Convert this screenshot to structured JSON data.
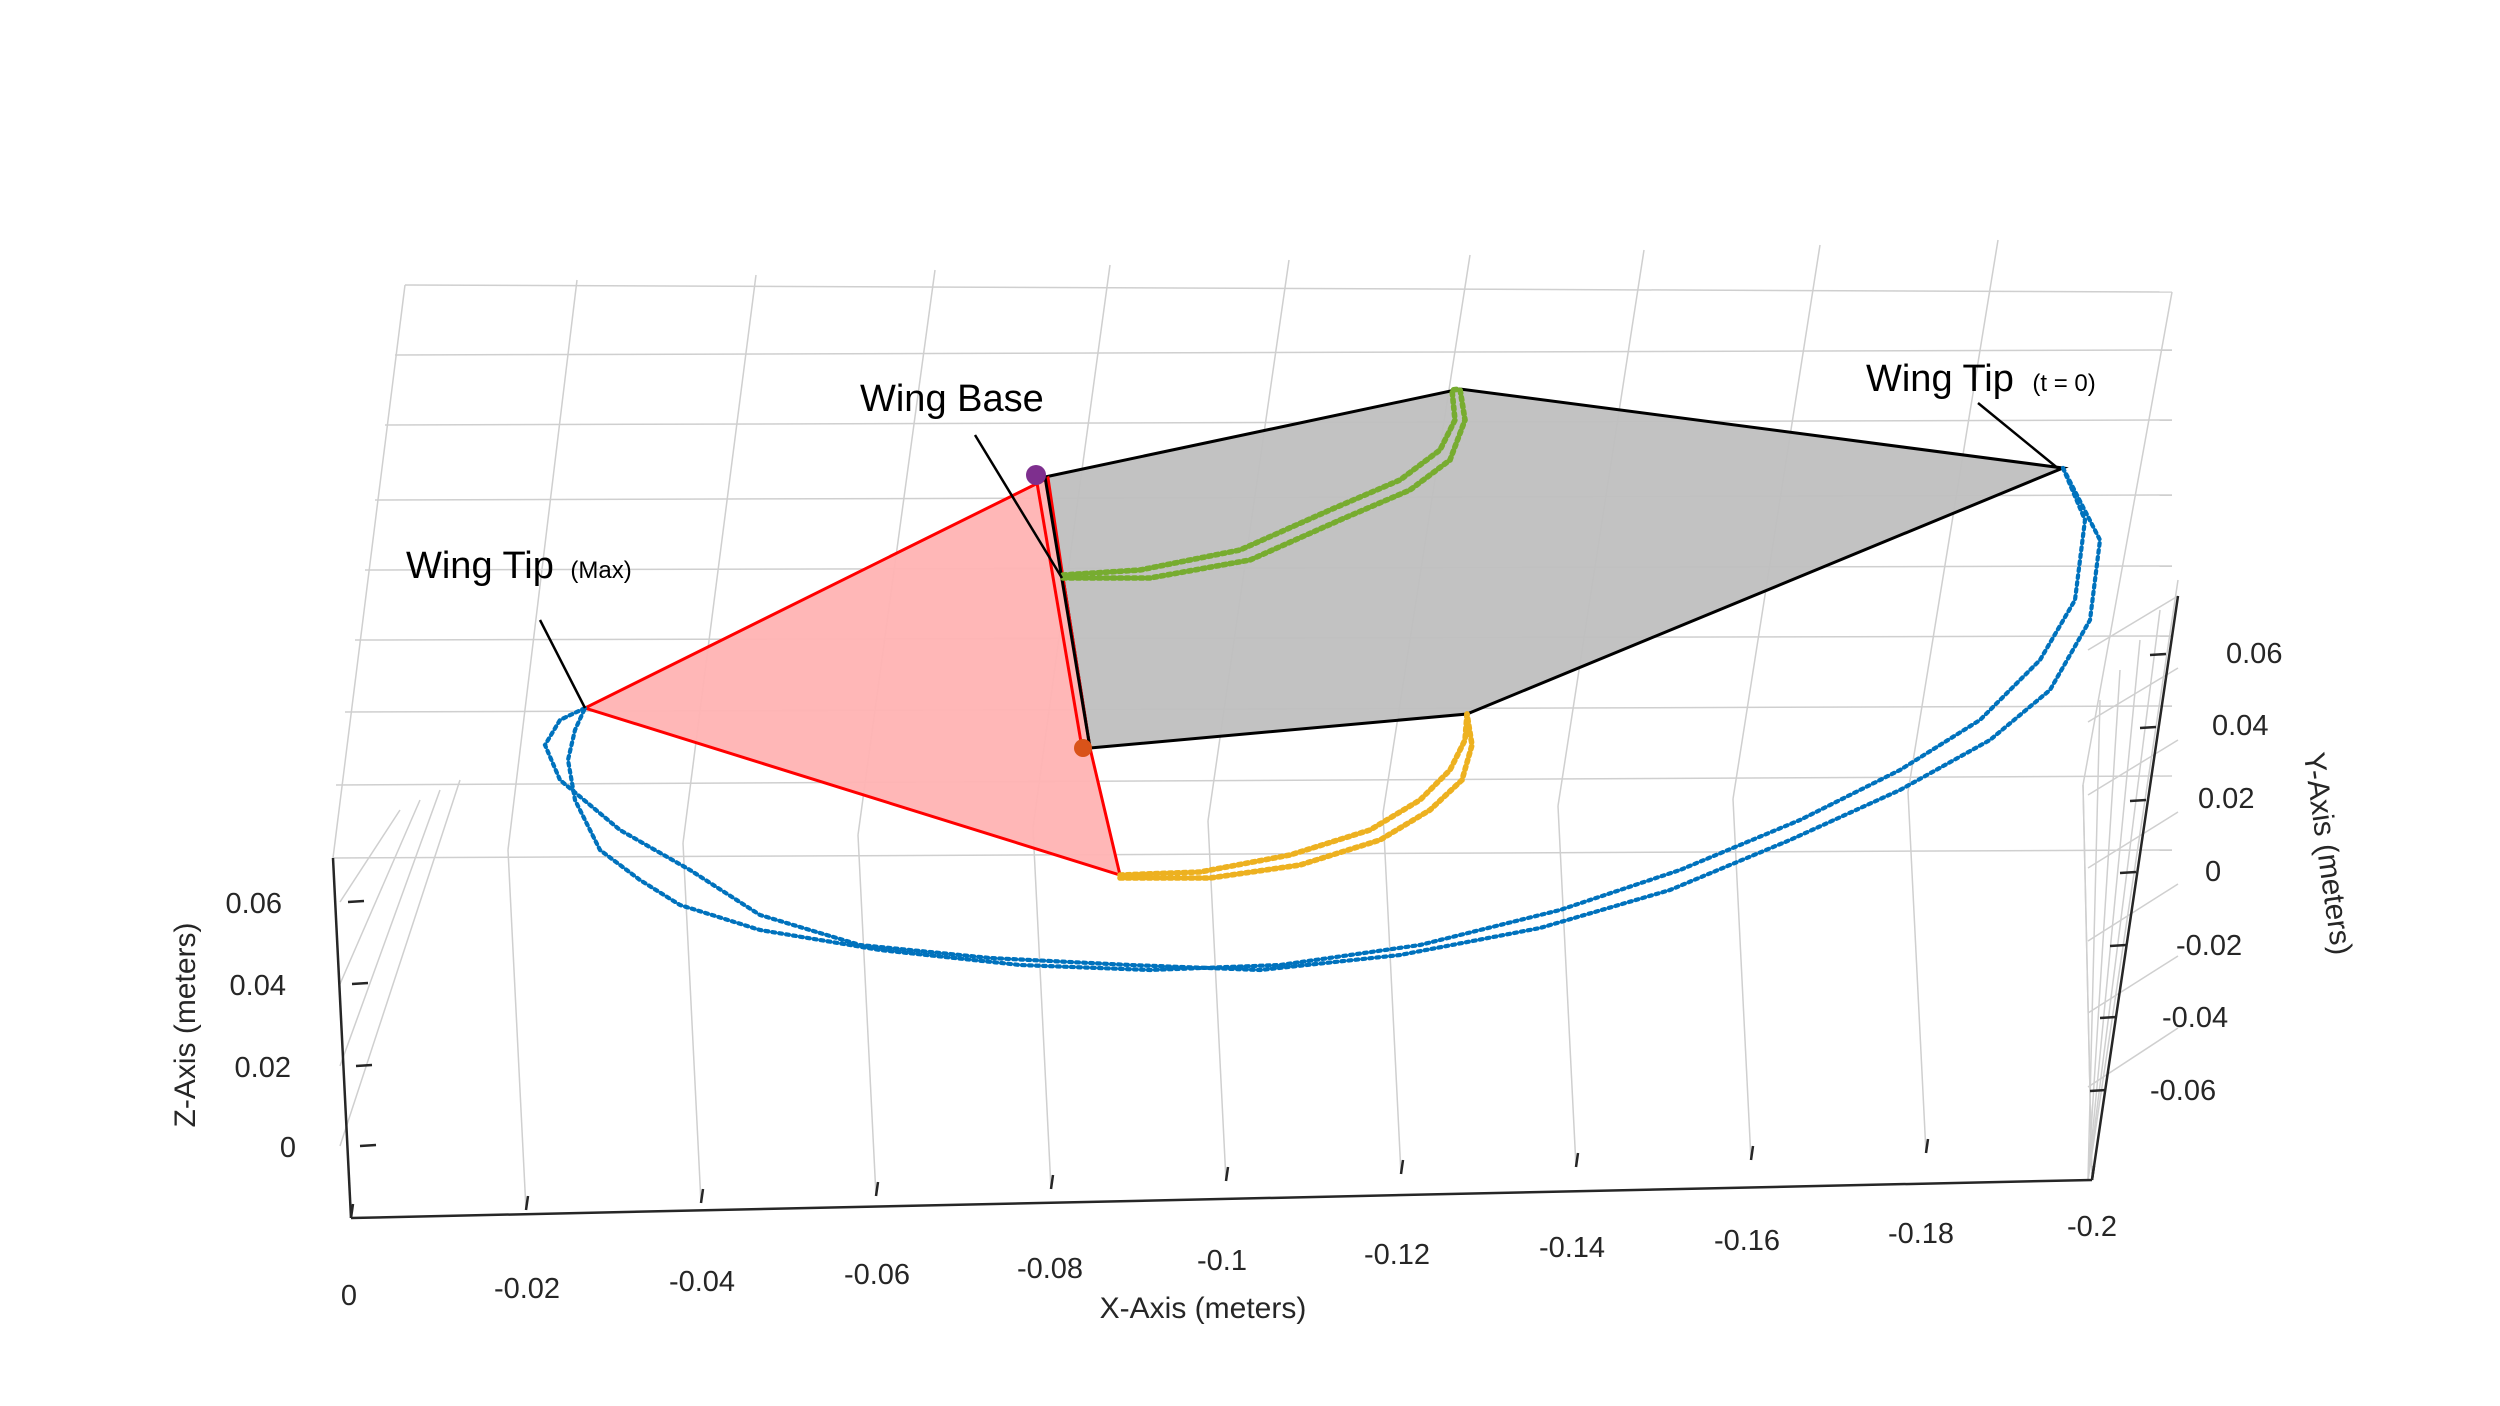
{
  "chart_data": {
    "type": "scatter",
    "projection": "3d",
    "title": "",
    "axes": {
      "x": {
        "label": "X-Axis (meters)",
        "range": [
          -0.2,
          0
        ],
        "ticks": [
          "0",
          "-0.02",
          "-0.04",
          "-0.06",
          "-0.08",
          "-0.1",
          "-0.12",
          "-0.14",
          "-0.16",
          "-0.18",
          "-0.2"
        ]
      },
      "y": {
        "label": "Y-Axis (meters)",
        "range": [
          -0.07,
          0.07
        ],
        "ticks": [
          "0.06",
          "0.04",
          "0.02",
          "0",
          "-0.02",
          "-0.04",
          "-0.06"
        ]
      },
      "z": {
        "label": "Z-Axis (meters)",
        "range": [
          0,
          0.07
        ],
        "ticks": [
          "0.06",
          "0.04",
          "0.02",
          "0"
        ]
      },
      "grid": true
    },
    "annotations": [
      {
        "name": "wing-base",
        "text": "Wing Base",
        "sub": ""
      },
      {
        "name": "wing-tip-t0",
        "text": "Wing Tip",
        "sub": "(t = 0)"
      },
      {
        "name": "wing-tip-max",
        "text": "Wing Tip",
        "sub": "(Max)"
      }
    ],
    "series": [
      {
        "name": "wing-tip-trajectory",
        "color": "#0072BD",
        "marker": "*"
      },
      {
        "name": "mid-wing-upper-trajectory",
        "color": "#77AC30",
        "marker": "*"
      },
      {
        "name": "mid-wing-lower-trajectory",
        "color": "#EDB120",
        "marker": "*"
      },
      {
        "name": "wing-base-marker",
        "color": "#7E2F8E",
        "marker": "o"
      },
      {
        "name": "wing-root-marker",
        "color": "#D95319",
        "marker": "o"
      }
    ],
    "surfaces": [
      {
        "name": "wing-at-t0",
        "face_color": "#bfbfbf",
        "edge_color": "#000000"
      },
      {
        "name": "wing-at-max",
        "face_color": "#ffb3b3",
        "edge_color": "#ff0000"
      }
    ]
  }
}
